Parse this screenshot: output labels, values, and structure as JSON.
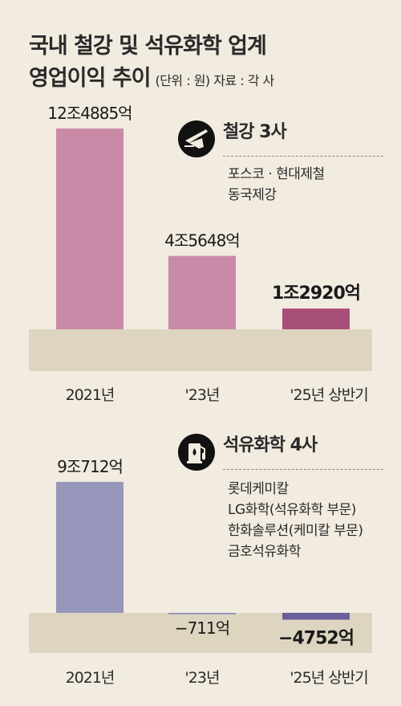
{
  "header": {
    "title_line1": "국내 철강 및 석유화학 업계",
    "title_line2": "영업이익 추이",
    "unit_source": "(단위 : 원) 자료 : 각 사"
  },
  "chart_data": [
    {
      "type": "bar",
      "categories": [
        "2021년",
        "'23년",
        "'25년 상반기"
      ],
      "series": [
        {
          "name": "철강 3사",
          "values": [
            124885,
            45648,
            12920
          ],
          "value_labels": [
            "12조4885억",
            "4조5648억",
            "1조2920억"
          ]
        }
      ],
      "value_unit": "억원",
      "companies": [
        "포스코 · 현대제철",
        "동국제강"
      ],
      "icon": "plane-icon",
      "colors": [
        "#c98aa8",
        "#c98aa8",
        "#a84f78"
      ],
      "grid": false
    },
    {
      "type": "bar",
      "categories": [
        "2021년",
        "'23년",
        "'25년 상반기"
      ],
      "series": [
        {
          "name": "석유화학 4사",
          "values": [
            90712,
            -711,
            -4752
          ],
          "value_labels": [
            "9조712억",
            "−711억",
            "−4752억"
          ]
        }
      ],
      "value_unit": "억원",
      "companies": [
        "롯데케미칼",
        "LG화학(석유화학 부문)",
        "한화솔루션(케미칼 부문)",
        "금호석유화학"
      ],
      "icon": "fuel-pump-icon",
      "colors": [
        "#9696bb",
        "#9696bb",
        "#6a5f9a"
      ],
      "grid": false
    }
  ],
  "colors": {
    "background": "#f2ebe0",
    "baseline_band": "#ddd5bf"
  }
}
